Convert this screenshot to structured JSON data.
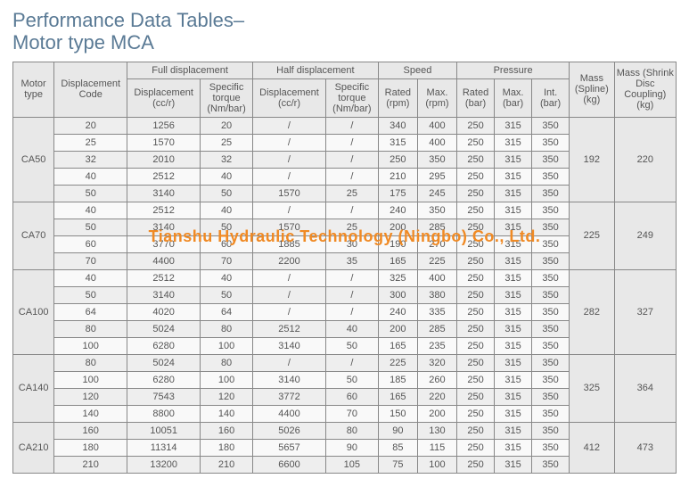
{
  "title_line1": "Performance Data Tables–",
  "title_line2": "Motor type MCA",
  "watermark": "Tianshu Hydraulic Technology (Ningbo) Co., Ltd.",
  "headers": {
    "motor_type": "Motor type",
    "disp_code": "Displacement Code",
    "full_disp": "Full displacement",
    "half_disp": "Half displacement",
    "speed": "Speed",
    "pressure": "Pressure",
    "mass_spline": "Mass (Spline) (kg)",
    "mass_shrink": "Mass (Shrink Disc Coupling) (kg)",
    "disp_cc": "Displacement (cc/r)",
    "torque": "Specific torque (Nm/bar)",
    "rated_rpm": "Rated (rpm)",
    "max_rpm": "Max. (rpm)",
    "rated_bar": "Rated (bar)",
    "max_bar": "Max. (bar)",
    "int_bar": "Int. (bar)"
  },
  "groups": [
    {
      "motor": "CA50",
      "mass_spline": "192",
      "mass_shrink": "220",
      "rows": [
        {
          "code": "20",
          "fd": "1256",
          "ft": "20",
          "hd": "/",
          "ht": "/",
          "rr": "340",
          "mr": "400",
          "rb": "250",
          "mb": "315",
          "ib": "350"
        },
        {
          "code": "25",
          "fd": "1570",
          "ft": "25",
          "hd": "/",
          "ht": "/",
          "rr": "315",
          "mr": "400",
          "rb": "250",
          "mb": "315",
          "ib": "350"
        },
        {
          "code": "32",
          "fd": "2010",
          "ft": "32",
          "hd": "/",
          "ht": "/",
          "rr": "250",
          "mr": "350",
          "rb": "250",
          "mb": "315",
          "ib": "350"
        },
        {
          "code": "40",
          "fd": "2512",
          "ft": "40",
          "hd": "/",
          "ht": "/",
          "rr": "210",
          "mr": "295",
          "rb": "250",
          "mb": "315",
          "ib": "350"
        },
        {
          "code": "50",
          "fd": "3140",
          "ft": "50",
          "hd": "1570",
          "ht": "25",
          "rr": "175",
          "mr": "245",
          "rb": "250",
          "mb": "315",
          "ib": "350"
        }
      ]
    },
    {
      "motor": "CA70",
      "mass_spline": "225",
      "mass_shrink": "249",
      "rows": [
        {
          "code": "40",
          "fd": "2512",
          "ft": "40",
          "hd": "/",
          "ht": "/",
          "rr": "240",
          "mr": "350",
          "rb": "250",
          "mb": "315",
          "ib": "350"
        },
        {
          "code": "50",
          "fd": "3140",
          "ft": "50",
          "hd": "1570",
          "ht": "25",
          "rr": "200",
          "mr": "285",
          "rb": "250",
          "mb": "315",
          "ib": "350"
        },
        {
          "code": "60",
          "fd": "3770",
          "ft": "60",
          "hd": "1885",
          "ht": "30",
          "rr": "190",
          "mr": "270",
          "rb": "250",
          "mb": "315",
          "ib": "350"
        },
        {
          "code": "70",
          "fd": "4400",
          "ft": "70",
          "hd": "2200",
          "ht": "35",
          "rr": "165",
          "mr": "225",
          "rb": "250",
          "mb": "315",
          "ib": "350"
        }
      ]
    },
    {
      "motor": "CA100",
      "mass_spline": "282",
      "mass_shrink": "327",
      "rows": [
        {
          "code": "40",
          "fd": "2512",
          "ft": "40",
          "hd": "/",
          "ht": "/",
          "rr": "325",
          "mr": "400",
          "rb": "250",
          "mb": "315",
          "ib": "350"
        },
        {
          "code": "50",
          "fd": "3140",
          "ft": "50",
          "hd": "/",
          "ht": "/",
          "rr": "300",
          "mr": "380",
          "rb": "250",
          "mb": "315",
          "ib": "350"
        },
        {
          "code": "64",
          "fd": "4020",
          "ft": "64",
          "hd": "/",
          "ht": "/",
          "rr": "240",
          "mr": "335",
          "rb": "250",
          "mb": "315",
          "ib": "350"
        },
        {
          "code": "80",
          "fd": "5024",
          "ft": "80",
          "hd": "2512",
          "ht": "40",
          "rr": "200",
          "mr": "285",
          "rb": "250",
          "mb": "315",
          "ib": "350"
        },
        {
          "code": "100",
          "fd": "6280",
          "ft": "100",
          "hd": "3140",
          "ht": "50",
          "rr": "165",
          "mr": "235",
          "rb": "250",
          "mb": "315",
          "ib": "350"
        }
      ]
    },
    {
      "motor": "CA140",
      "mass_spline": "325",
      "mass_shrink": "364",
      "rows": [
        {
          "code": "80",
          "fd": "5024",
          "ft": "80",
          "hd": "/",
          "ht": "/",
          "rr": "225",
          "mr": "320",
          "rb": "250",
          "mb": "315",
          "ib": "350"
        },
        {
          "code": "100",
          "fd": "6280",
          "ft": "100",
          "hd": "3140",
          "ht": "50",
          "rr": "185",
          "mr": "260",
          "rb": "250",
          "mb": "315",
          "ib": "350"
        },
        {
          "code": "120",
          "fd": "7543",
          "ft": "120",
          "hd": "3772",
          "ht": "60",
          "rr": "165",
          "mr": "220",
          "rb": "250",
          "mb": "315",
          "ib": "350"
        },
        {
          "code": "140",
          "fd": "8800",
          "ft": "140",
          "hd": "4400",
          "ht": "70",
          "rr": "150",
          "mr": "200",
          "rb": "250",
          "mb": "315",
          "ib": "350"
        }
      ]
    },
    {
      "motor": "CA210",
      "mass_spline": "412",
      "mass_shrink": "473",
      "rows": [
        {
          "code": "160",
          "fd": "10051",
          "ft": "160",
          "hd": "5026",
          "ht": "80",
          "rr": "90",
          "mr": "130",
          "rb": "250",
          "mb": "315",
          "ib": "350"
        },
        {
          "code": "180",
          "fd": "11314",
          "ft": "180",
          "hd": "5657",
          "ht": "90",
          "rr": "85",
          "mr": "115",
          "rb": "250",
          "mb": "315",
          "ib": "350"
        },
        {
          "code": "210",
          "fd": "13200",
          "ft": "210",
          "hd": "6600",
          "ht": "105",
          "rr": "75",
          "mr": "100",
          "rb": "250",
          "mb": "315",
          "ib": "350"
        }
      ]
    }
  ]
}
